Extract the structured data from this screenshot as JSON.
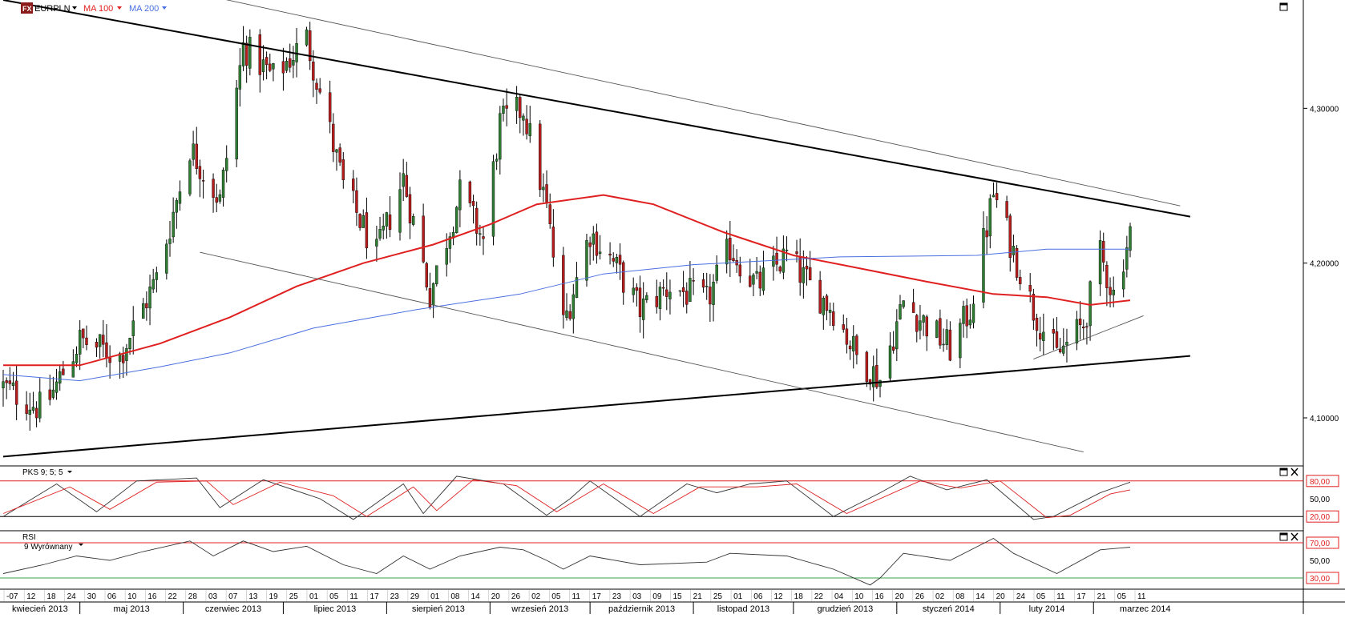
{
  "header": {
    "logo": "FX",
    "symbol": "EURPLN",
    "ma1_label": "MA 100",
    "ma2_label": "MA 200",
    "pks_label": "PKS 9; 5; 5",
    "rsi_label": "RSI",
    "rsi_sub": "9 Wyrównany"
  },
  "colors": {
    "bull": "#2e7d32",
    "bear": "#b71c1c",
    "ma100": "#e02020",
    "ma200": "#4a6fe0",
    "level": "#e02020",
    "rsi30": "#3aa34a"
  },
  "chart_data": [
    {
      "type": "candlestick",
      "symbol": "EURPLN",
      "x_range": [
        "2013-04-08",
        "2014-03-12"
      ],
      "ylim": [
        4.07,
        4.37
      ],
      "y_ticks": [
        "4,30000",
        "4,20000",
        "4,10000"
      ],
      "x_day_ticks": [
        "-07",
        "12",
        "18",
        "24",
        "30",
        "06",
        "10",
        "16",
        "22",
        "28",
        "03",
        "07",
        "13",
        "19",
        "25",
        "01",
        "05",
        "11",
        "17",
        "23",
        "29",
        "01",
        "08",
        "14",
        "20",
        "26",
        "02",
        "05",
        "11",
        "17",
        "23",
        "03",
        "09",
        "15",
        "21",
        "25",
        "01",
        "06",
        "12",
        "18",
        "22",
        "04",
        "10",
        "16",
        "20",
        "26",
        "02",
        "08",
        "14",
        "20",
        "24",
        "05",
        "11",
        "17",
        "21",
        "05",
        "11"
      ],
      "x_month_labels": [
        "kwiecień 2013",
        "maj 2013",
        "czerwiec 2013",
        "lipiec 2013",
        "sierpień 2013",
        "wrzesień 2013",
        "październik 2013",
        "listopad 2013",
        "grudzień 2013",
        "styczeń 2014",
        "luty 2014",
        "marzec 2014"
      ],
      "ohlc_anchors": [
        {
          "date": "2013-04-08",
          "close": 4.12
        },
        {
          "date": "2013-04-20",
          "close": 4.105
        },
        {
          "date": "2013-05-01",
          "close": 4.15
        },
        {
          "date": "2013-05-13",
          "close": 4.14
        },
        {
          "date": "2013-05-24",
          "close": 4.19
        },
        {
          "date": "2013-06-03",
          "close": 4.275
        },
        {
          "date": "2013-06-12",
          "close": 4.24
        },
        {
          "date": "2013-06-19",
          "close": 4.34
        },
        {
          "date": "2013-06-28",
          "close": 4.32
        },
        {
          "date": "2013-07-08",
          "close": 4.345
        },
        {
          "date": "2013-07-19",
          "close": 4.25
        },
        {
          "date": "2013-07-29",
          "close": 4.205
        },
        {
          "date": "2013-08-06",
          "close": 4.255
        },
        {
          "date": "2013-08-14",
          "close": 4.18
        },
        {
          "date": "2013-08-23",
          "close": 4.245
        },
        {
          "date": "2013-08-30",
          "close": 4.215
        },
        {
          "date": "2013-09-04",
          "close": 4.29
        },
        {
          "date": "2013-09-11",
          "close": 4.3
        },
        {
          "date": "2013-09-18",
          "close": 4.235
        },
        {
          "date": "2013-09-23",
          "close": 4.16
        },
        {
          "date": "2013-10-01",
          "close": 4.22
        },
        {
          "date": "2013-10-08",
          "close": 4.2
        },
        {
          "date": "2013-10-16",
          "close": 4.17
        },
        {
          "date": "2013-10-25",
          "close": 4.185
        },
        {
          "date": "2013-11-05",
          "close": 4.175
        },
        {
          "date": "2013-11-12",
          "close": 4.21
        },
        {
          "date": "2013-11-20",
          "close": 4.185
        },
        {
          "date": "2013-11-29",
          "close": 4.205
        },
        {
          "date": "2013-12-06",
          "close": 4.185
        },
        {
          "date": "2013-12-13",
          "close": 4.17
        },
        {
          "date": "2013-12-20",
          "close": 4.14
        },
        {
          "date": "2013-12-27",
          "close": 4.125
        },
        {
          "date": "2014-01-03",
          "close": 4.175
        },
        {
          "date": "2014-01-10",
          "close": 4.16
        },
        {
          "date": "2014-01-17",
          "close": 4.145
        },
        {
          "date": "2014-01-23",
          "close": 4.17
        },
        {
          "date": "2014-01-30",
          "close": 4.245
        },
        {
          "date": "2014-02-03",
          "close": 4.22
        },
        {
          "date": "2014-02-11",
          "close": 4.17
        },
        {
          "date": "2014-02-18",
          "close": 4.14
        },
        {
          "date": "2014-02-26",
          "close": 4.16
        },
        {
          "date": "2014-03-03",
          "close": 4.205
        },
        {
          "date": "2014-03-07",
          "close": 4.18
        },
        {
          "date": "2014-03-12",
          "close": 4.22
        }
      ],
      "series": [
        {
          "name": "MA 100",
          "type": "line",
          "points": [
            {
              "date": "2013-04-08",
              "value": 4.134
            },
            {
              "date": "2013-05-01",
              "value": 4.134
            },
            {
              "date": "2013-05-25",
              "value": 4.148
            },
            {
              "date": "2013-06-15",
              "value": 4.165
            },
            {
              "date": "2013-07-05",
              "value": 4.185
            },
            {
              "date": "2013-07-25",
              "value": 4.2
            },
            {
              "date": "2013-08-15",
              "value": 4.212
            },
            {
              "date": "2013-09-01",
              "value": 4.225
            },
            {
              "date": "2013-09-15",
              "value": 4.238
            },
            {
              "date": "2013-10-05",
              "value": 4.244
            },
            {
              "date": "2013-10-20",
              "value": 4.238
            },
            {
              "date": "2013-11-10",
              "value": 4.22
            },
            {
              "date": "2013-12-01",
              "value": 4.205
            },
            {
              "date": "2013-12-20",
              "value": 4.197
            },
            {
              "date": "2014-01-10",
              "value": 4.188
            },
            {
              "date": "2014-01-30",
              "value": 4.18
            },
            {
              "date": "2014-02-15",
              "value": 4.178
            },
            {
              "date": "2014-02-28",
              "value": 4.173
            },
            {
              "date": "2014-03-12",
              "value": 4.176
            }
          ]
        },
        {
          "name": "MA 200",
          "type": "line",
          "points": [
            {
              "date": "2013-04-08",
              "value": 4.128
            },
            {
              "date": "2013-05-01",
              "value": 4.124
            },
            {
              "date": "2013-05-25",
              "value": 4.133
            },
            {
              "date": "2013-06-15",
              "value": 4.142
            },
            {
              "date": "2013-07-10",
              "value": 4.158
            },
            {
              "date": "2013-08-10",
              "value": 4.17
            },
            {
              "date": "2013-09-10",
              "value": 4.18
            },
            {
              "date": "2013-10-05",
              "value": 4.193
            },
            {
              "date": "2013-11-01",
              "value": 4.199
            },
            {
              "date": "2013-12-15",
              "value": 4.204
            },
            {
              "date": "2014-01-25",
              "value": 4.205
            },
            {
              "date": "2014-02-15",
              "value": 4.209
            },
            {
              "date": "2014-03-12",
              "value": 4.209
            }
          ]
        }
      ],
      "trendlines": [
        {
          "weight": "thick",
          "from": {
            "date": "2013-04-08",
            "value": 4.37
          },
          "to": {
            "date": "2014-03-30",
            "value": 4.23
          }
        },
        {
          "weight": "thick",
          "from": {
            "date": "2013-04-08",
            "value": 4.075
          },
          "to": {
            "date": "2014-03-30",
            "value": 4.14
          }
        },
        {
          "weight": "thin",
          "from": {
            "date": "2013-06-10",
            "value": 4.372
          },
          "to": {
            "date": "2014-03-27",
            "value": 4.237
          }
        },
        {
          "weight": "thin",
          "from": {
            "date": "2013-06-06",
            "value": 4.207
          },
          "to": {
            "date": "2014-02-26",
            "value": 4.078
          }
        },
        {
          "weight": "thin",
          "from": {
            "date": "2014-02-11",
            "value": 4.138
          },
          "to": {
            "date": "2014-03-16",
            "value": 4.166
          }
        }
      ]
    },
    {
      "type": "line",
      "series": [
        {
          "name": "",
          "points": [
            {
              "date": "2013-04-08",
              "value": 20
            },
            {
              "date": "2013-04-24",
              "value": 75
            },
            {
              "date": "2013-05-06",
              "value": 28
            },
            {
              "date": "2013-05-18",
              "value": 80
            },
            {
              "date": "2013-06-05",
              "value": 85
            },
            {
              "date": "2013-06-12",
              "value": 35
            },
            {
              "date": "2013-06-25",
              "value": 82
            },
            {
              "date": "2013-07-12",
              "value": 50
            },
            {
              "date": "2013-07-22",
              "value": 15
            },
            {
              "date": "2013-08-06",
              "value": 75
            },
            {
              "date": "2013-08-12",
              "value": 25
            },
            {
              "date": "2013-08-22",
              "value": 88
            },
            {
              "date": "2013-09-05",
              "value": 75
            },
            {
              "date": "2013-09-18",
              "value": 22
            },
            {
              "date": "2013-09-25",
              "value": 50
            },
            {
              "date": "2013-10-01",
              "value": 80
            },
            {
              "date": "2013-10-16",
              "value": 20
            },
            {
              "date": "2013-10-30",
              "value": 75
            },
            {
              "date": "2013-11-08",
              "value": 60
            },
            {
              "date": "2013-11-18",
              "value": 75
            },
            {
              "date": "2013-11-29",
              "value": 80
            },
            {
              "date": "2013-12-13",
              "value": 20
            },
            {
              "date": "2013-12-27",
              "value": 60
            },
            {
              "date": "2014-01-05",
              "value": 88
            },
            {
              "date": "2014-01-16",
              "value": 65
            },
            {
              "date": "2014-01-28",
              "value": 82
            },
            {
              "date": "2014-02-11",
              "value": 15
            },
            {
              "date": "2014-02-17",
              "value": 20
            },
            {
              "date": "2014-03-03",
              "value": 60
            },
            {
              "date": "2014-03-12",
              "value": 78
            }
          ]
        },
        {
          "name": "",
          "points": [
            {
              "date": "2013-04-08",
              "value": 25
            },
            {
              "date": "2013-04-28",
              "value": 70
            },
            {
              "date": "2013-05-10",
              "value": 32
            },
            {
              "date": "2013-05-24",
              "value": 78
            },
            {
              "date": "2013-06-08",
              "value": 80
            },
            {
              "date": "2013-06-16",
              "value": 40
            },
            {
              "date": "2013-06-30",
              "value": 78
            },
            {
              "date": "2013-07-16",
              "value": 55
            },
            {
              "date": "2013-07-26",
              "value": 20
            },
            {
              "date": "2013-08-09",
              "value": 70
            },
            {
              "date": "2013-08-16",
              "value": 30
            },
            {
              "date": "2013-08-27",
              "value": 82
            },
            {
              "date": "2013-09-09",
              "value": 72
            },
            {
              "date": "2013-09-21",
              "value": 28
            },
            {
              "date": "2013-10-05",
              "value": 75
            },
            {
              "date": "2013-10-20",
              "value": 25
            },
            {
              "date": "2013-11-03",
              "value": 70
            },
            {
              "date": "2013-11-20",
              "value": 70
            },
            {
              "date": "2013-12-02",
              "value": 75
            },
            {
              "date": "2013-12-17",
              "value": 25
            },
            {
              "date": "2014-01-08",
              "value": 80
            },
            {
              "date": "2014-01-20",
              "value": 68
            },
            {
              "date": "2014-02-01",
              "value": 80
            },
            {
              "date": "2014-02-15",
              "value": 18
            },
            {
              "date": "2014-02-22",
              "value": 22
            },
            {
              "date": "2014-03-06",
              "value": 58
            },
            {
              "date": "2014-03-12",
              "value": 65
            }
          ]
        }
      ],
      "ylim": [
        0,
        100
      ],
      "levels": [
        80,
        20
      ],
      "y_ticks": [
        "80,00",
        "50,00",
        "20,00"
      ]
    },
    {
      "type": "line",
      "series": [
        {
          "name": "",
          "points": [
            {
              "date": "2013-04-08",
              "value": 35
            },
            {
              "date": "2013-04-20",
              "value": 45
            },
            {
              "date": "2013-04-30",
              "value": 55
            },
            {
              "date": "2013-05-10",
              "value": 50
            },
            {
              "date": "2013-05-20",
              "value": 60
            },
            {
              "date": "2013-06-03",
              "value": 72
            },
            {
              "date": "2013-06-10",
              "value": 55
            },
            {
              "date": "2013-06-19",
              "value": 72
            },
            {
              "date": "2013-06-28",
              "value": 60
            },
            {
              "date": "2013-07-08",
              "value": 66
            },
            {
              "date": "2013-07-19",
              "value": 45
            },
            {
              "date": "2013-07-29",
              "value": 35
            },
            {
              "date": "2013-08-06",
              "value": 55
            },
            {
              "date": "2013-08-14",
              "value": 40
            },
            {
              "date": "2013-08-23",
              "value": 55
            },
            {
              "date": "2013-09-04",
              "value": 65
            },
            {
              "date": "2013-09-11",
              "value": 62
            },
            {
              "date": "2013-09-18",
              "value": 50
            },
            {
              "date": "2013-09-23",
              "value": 40
            },
            {
              "date": "2013-10-01",
              "value": 55
            },
            {
              "date": "2013-10-16",
              "value": 45
            },
            {
              "date": "2013-11-05",
              "value": 48
            },
            {
              "date": "2013-11-12",
              "value": 58
            },
            {
              "date": "2013-11-29",
              "value": 55
            },
            {
              "date": "2013-12-13",
              "value": 40
            },
            {
              "date": "2013-12-24",
              "value": 22
            },
            {
              "date": "2013-12-27",
              "value": 30
            },
            {
              "date": "2014-01-03",
              "value": 58
            },
            {
              "date": "2014-01-17",
              "value": 50
            },
            {
              "date": "2014-01-30",
              "value": 75
            },
            {
              "date": "2014-02-05",
              "value": 58
            },
            {
              "date": "2014-02-18",
              "value": 35
            },
            {
              "date": "2014-03-03",
              "value": 62
            },
            {
              "date": "2014-03-12",
              "value": 65
            }
          ]
        }
      ],
      "ylim": [
        20,
        80
      ],
      "levels": [
        70,
        30
      ],
      "y_ticks": [
        "70,00",
        "50,00",
        "30,00"
      ]
    }
  ]
}
